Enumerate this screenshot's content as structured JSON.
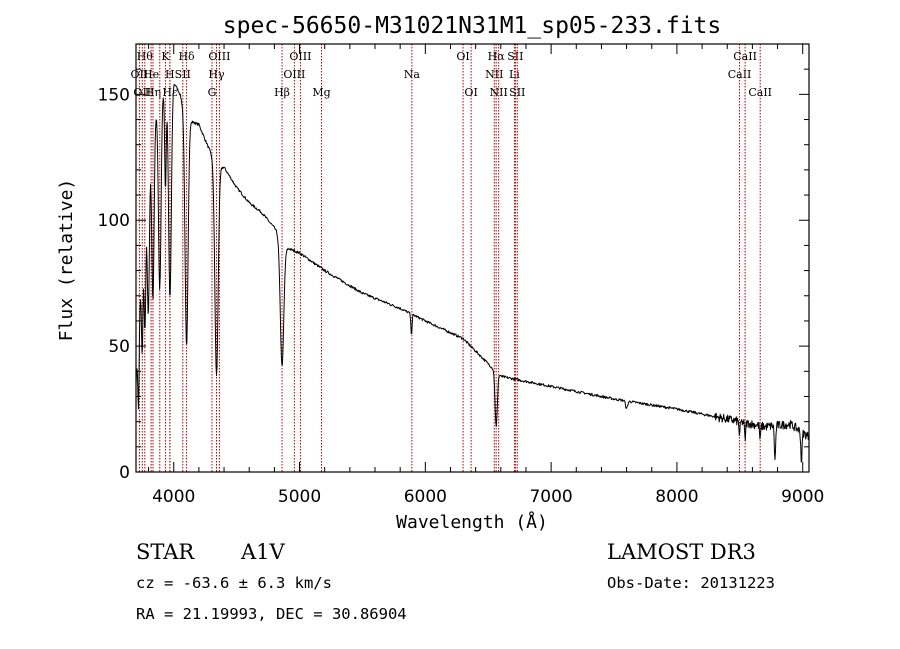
{
  "chart_data": {
    "type": "line",
    "title": "spec-56650-M31021N31M1_sp05-233.fits",
    "xlabel": "Wavelength (Å)",
    "ylabel": "Flux (relative)",
    "xlim": [
      3700,
      9050
    ],
    "ylim": [
      0,
      170
    ],
    "x_ticks": [
      4000,
      5000,
      6000,
      7000,
      8000,
      9000
    ],
    "y_ticks": [
      0,
      50,
      100,
      150
    ],
    "grid": false,
    "continuum_points": [
      [
        3700,
        35
      ],
      [
        3760,
        95
      ],
      [
        3800,
        118
      ],
      [
        3850,
        140
      ],
      [
        3900,
        150
      ],
      [
        3950,
        153
      ],
      [
        4000,
        155
      ],
      [
        4050,
        150
      ],
      [
        4100,
        140
      ],
      [
        4200,
        138
      ],
      [
        4300,
        126
      ],
      [
        4340,
        121
      ],
      [
        4400,
        121
      ],
      [
        4500,
        113
      ],
      [
        4600,
        107
      ],
      [
        4700,
        103
      ],
      [
        4800,
        97
      ],
      [
        4900,
        89
      ],
      [
        5000,
        87
      ],
      [
        5200,
        80
      ],
      [
        5500,
        71
      ],
      [
        5800,
        65
      ],
      [
        6000,
        60
      ],
      [
        6300,
        53
      ],
      [
        6600,
        38
      ],
      [
        6700,
        37
      ],
      [
        7000,
        34
      ],
      [
        7500,
        29
      ],
      [
        8000,
        25
      ],
      [
        8500,
        20
      ],
      [
        8700,
        18
      ],
      [
        8900,
        19
      ],
      [
        9050,
        14
      ]
    ],
    "absorption_features": [
      {
        "center": 3720,
        "depth": 30,
        "width": 5
      },
      {
        "center": 3750,
        "depth": 38,
        "width": 6
      },
      {
        "center": 3771,
        "depth": 45,
        "width": 7
      },
      {
        "center": 3798,
        "depth": 55,
        "width": 8
      },
      {
        "center": 3835,
        "depth": 65,
        "width": 9
      },
      {
        "center": 3889,
        "depth": 75,
        "width": 10
      },
      {
        "center": 3934,
        "depth": 40,
        "width": 6
      },
      {
        "center": 3970,
        "depth": 85,
        "width": 11
      },
      {
        "center": 4102,
        "depth": 90,
        "width": 12
      },
      {
        "center": 4340,
        "depth": 83,
        "width": 13
      },
      {
        "center": 4861,
        "depth": 50,
        "width": 14
      },
      {
        "center": 5890,
        "depth": 8,
        "width": 5
      },
      {
        "center": 6563,
        "depth": 22,
        "width": 9
      },
      {
        "center": 7600,
        "depth": 3,
        "width": 8
      },
      {
        "center": 8498,
        "depth": 6,
        "width": 4
      },
      {
        "center": 8542,
        "depth": 7,
        "width": 4
      },
      {
        "center": 8662,
        "depth": 6,
        "width": 4
      },
      {
        "center": 8780,
        "depth": 14,
        "width": 5
      },
      {
        "center": 8990,
        "depth": 12,
        "width": 5
      }
    ],
    "line_markers": [
      {
        "x": 3727,
        "label": "OII",
        "row": 1
      },
      {
        "x": 3750,
        "label": "OII",
        "row": 2
      },
      {
        "x": 3770,
        "label": "Hθ",
        "row": 0
      },
      {
        "x": 3820,
        "label": "He",
        "row": 1
      },
      {
        "x": 3835,
        "label": "Hη",
        "row": 2
      },
      {
        "x": 3889,
        "label": "",
        "row": 0
      },
      {
        "x": 3934,
        "label": "K",
        "row": 0
      },
      {
        "x": 3969,
        "label": "H",
        "row": 1
      },
      {
        "x": 3970,
        "label": "Hε",
        "row": 2
      },
      {
        "x": 4072,
        "label": "SII",
        "row": 1
      },
      {
        "x": 4102,
        "label": "Hδ",
        "row": 0
      },
      {
        "x": 4304,
        "label": "G",
        "row": 2
      },
      {
        "x": 4340,
        "label": "Hγ",
        "row": 1
      },
      {
        "x": 4363,
        "label": "OIII",
        "row": 0
      },
      {
        "x": 4861,
        "label": "Hβ",
        "row": 2
      },
      {
        "x": 4959,
        "label": "OIII",
        "row": 1
      },
      {
        "x": 5007,
        "label": "OIII",
        "row": 0
      },
      {
        "x": 5175,
        "label": "Mg",
        "row": 2
      },
      {
        "x": 5893,
        "label": "Na",
        "row": 1
      },
      {
        "x": 6300,
        "label": "OI",
        "row": 0
      },
      {
        "x": 6364,
        "label": "OI",
        "row": 2
      },
      {
        "x": 6548,
        "label": "NII",
        "row": 1
      },
      {
        "x": 6563,
        "label": "Hα",
        "row": 0
      },
      {
        "x": 6583,
        "label": "NII",
        "row": 2
      },
      {
        "x": 6708,
        "label": "Li",
        "row": 1
      },
      {
        "x": 6716,
        "label": "SII",
        "row": 0
      },
      {
        "x": 6731,
        "label": "SII",
        "row": 2
      },
      {
        "x": 8498,
        "label": "CaII",
        "row": 1
      },
      {
        "x": 8542,
        "label": "CaII",
        "row": 0
      },
      {
        "x": 8662,
        "label": "CaII",
        "row": 2
      }
    ]
  },
  "info": {
    "object_class": "STAR",
    "subclass": "A1V",
    "survey": "LAMOST DR3",
    "redshift": "cz = -63.6 ± 6.3 km/s",
    "obs_date": "Obs-Date: 20131223",
    "coords": "RA =  21.19993, DEC =  30.86904"
  }
}
